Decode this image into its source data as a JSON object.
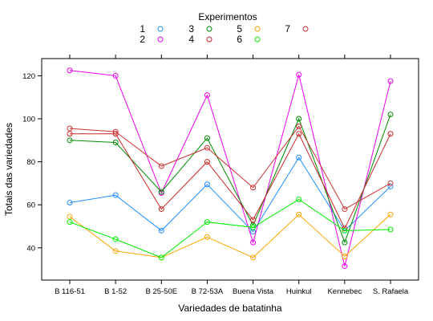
{
  "chart_data": {
    "type": "line",
    "title": "",
    "xlabel": "Variedades de batatinha",
    "ylabel": "Totais das variedades",
    "ylim": [
      25,
      128
    ],
    "yticks": [
      40,
      60,
      80,
      100,
      120
    ],
    "categories": [
      "B 116-51",
      "B 1-52",
      "B 25-50E",
      "B 72-53A",
      "Buena Vista",
      "Huinkul",
      "Kennebec",
      "S. Rafaela"
    ],
    "grid": false,
    "legend": {
      "title": "Experimentos",
      "placement": "top"
    },
    "series": [
      {
        "name": "1",
        "color": "#1E90FF",
        "values": [
          61.0,
          64.5,
          48.0,
          69.5,
          47.5,
          82.0,
          48.0,
          68.5
        ]
      },
      {
        "name": "2",
        "color": "#EE00EE",
        "values": [
          122.5,
          120.0,
          65.5,
          111.0,
          42.5,
          120.5,
          31.5,
          117.5
        ]
      },
      {
        "name": "3",
        "color": "#008B00",
        "values": [
          90.0,
          89.0,
          66.0,
          91.0,
          50.5,
          100.0,
          42.5,
          102.0
        ]
      },
      {
        "name": "4",
        "color": "#CD2626",
        "values": [
          93.0,
          93.0,
          58.0,
          80.0,
          53.0,
          93.0,
          49.0,
          93.0
        ]
      },
      {
        "name": "5",
        "color": "#FFA500",
        "values": [
          54.5,
          38.5,
          35.5,
          45.0,
          35.5,
          55.5,
          36.0,
          55.5
        ]
      },
      {
        "name": "6",
        "color": "#00EE00",
        "values": [
          52.0,
          44.0,
          35.5,
          52.0,
          49.5,
          62.5,
          48.0,
          48.5
        ]
      },
      {
        "name": "7",
        "color": "#CD3333",
        "values": [
          95.5,
          94.0,
          78.0,
          86.5,
          68.0,
          96.5,
          58.0,
          70.0
        ]
      }
    ]
  }
}
